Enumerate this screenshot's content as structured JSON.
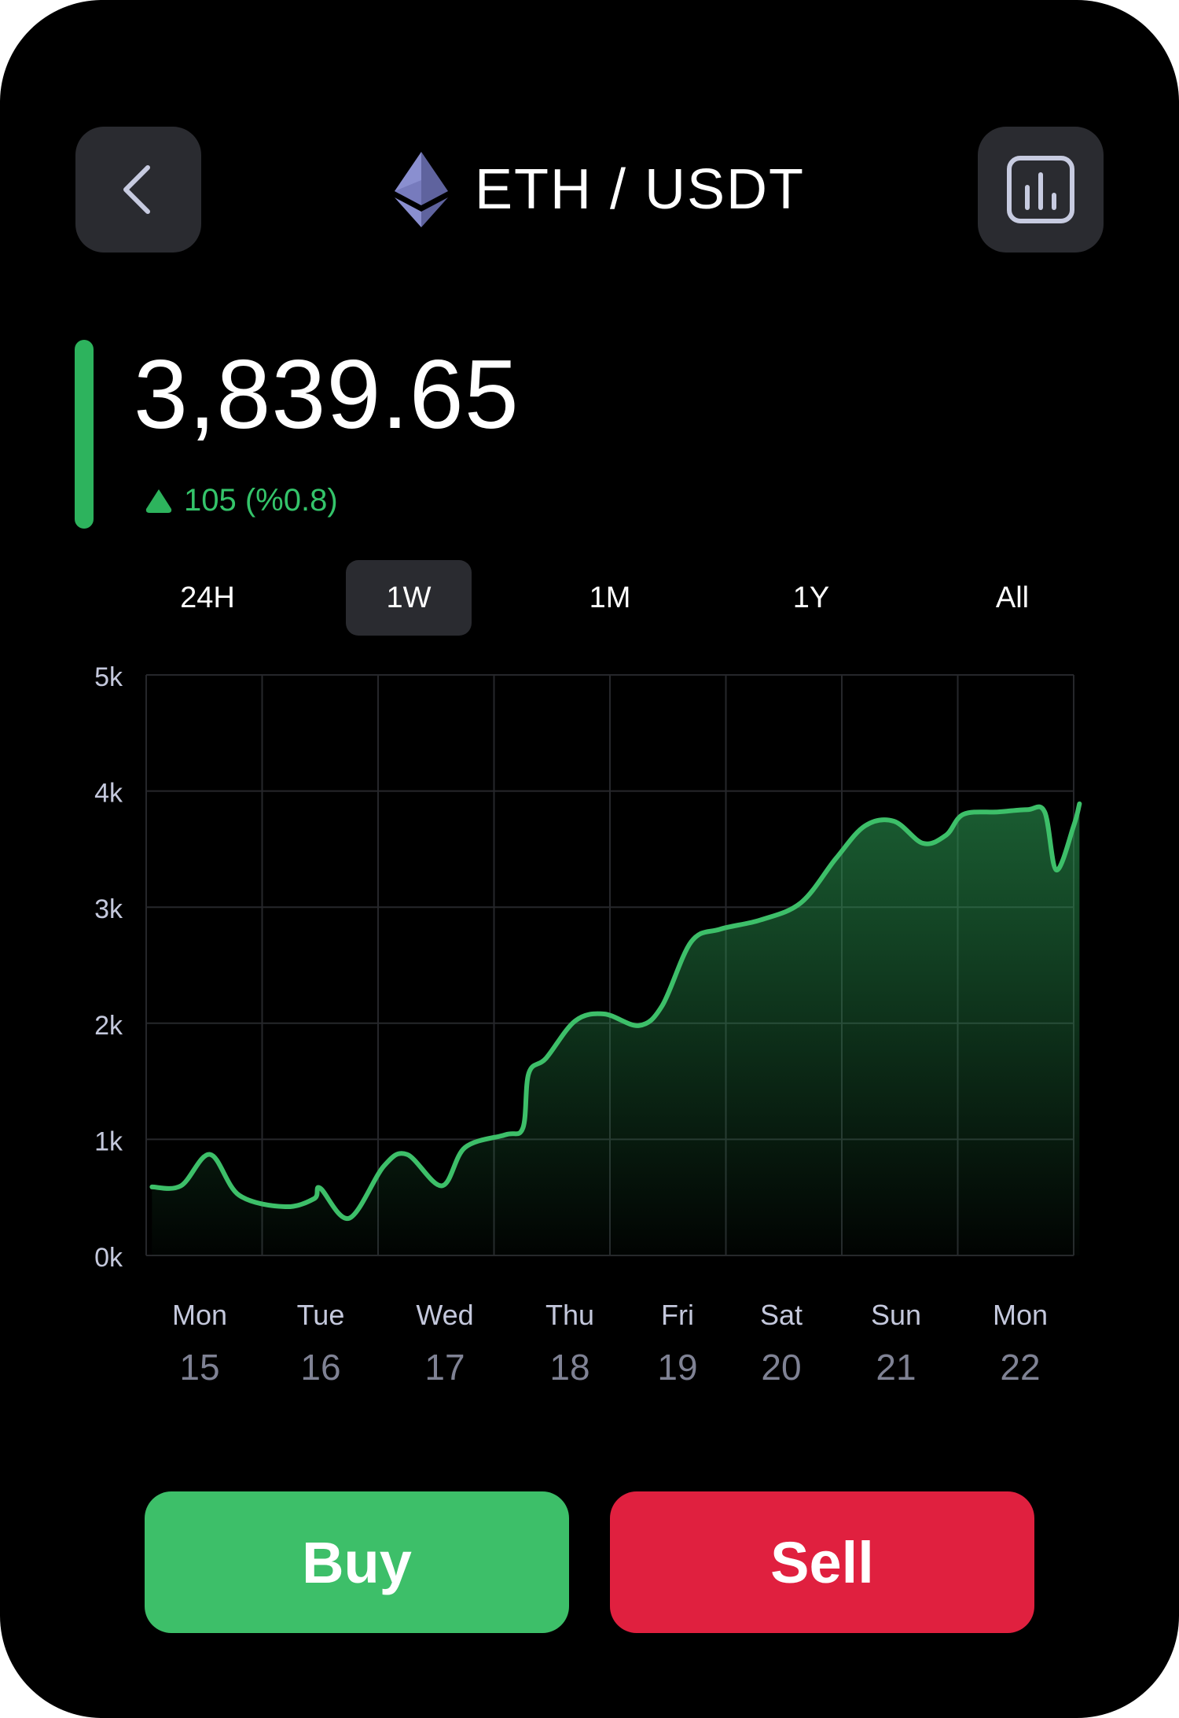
{
  "header": {
    "pair": "ETH / USDT",
    "back_icon": "chevron-left-icon",
    "chart_icon": "bar-chart-icon",
    "coin_icon": "ethereum-icon"
  },
  "price": {
    "value": "3,839.65",
    "change": "105 (%0.8)",
    "trend": "up"
  },
  "range_tabs": [
    {
      "label": "24H",
      "active": false
    },
    {
      "label": "1W",
      "active": true
    },
    {
      "label": "1M",
      "active": false
    },
    {
      "label": "1Y",
      "active": false
    },
    {
      "label": "All",
      "active": false
    }
  ],
  "chart_data": {
    "type": "area",
    "y_ticks": [
      "5k",
      "4k",
      "3k",
      "2k",
      "1k",
      "0k"
    ],
    "ylim": [
      0,
      5000
    ],
    "xlim": [
      0,
      8
    ],
    "x_labels": [
      {
        "day": "Mon",
        "date": "15"
      },
      {
        "day": "Tue",
        "date": "16"
      },
      {
        "day": "Wed",
        "date": "17"
      },
      {
        "day": "Thu",
        "date": "18"
      },
      {
        "day": "Fri",
        "date": "19"
      },
      {
        "day": "Sat",
        "date": "20"
      },
      {
        "day": "Sun",
        "date": "21"
      },
      {
        "day": "Mon",
        "date": "22"
      }
    ],
    "grid": true,
    "series": [
      {
        "points": [
          [
            0.05,
            590
          ],
          [
            0.3,
            600
          ],
          [
            0.55,
            870
          ],
          [
            0.8,
            520
          ],
          [
            1.2,
            420
          ],
          [
            1.45,
            490
          ],
          [
            1.5,
            580
          ],
          [
            1.75,
            320
          ],
          [
            2.05,
            770
          ],
          [
            2.25,
            870
          ],
          [
            2.55,
            600
          ],
          [
            2.75,
            930
          ],
          [
            3.1,
            1040
          ],
          [
            3.25,
            1100
          ],
          [
            3.3,
            1570
          ],
          [
            3.45,
            1700
          ],
          [
            3.7,
            2020
          ],
          [
            3.95,
            2080
          ],
          [
            4.25,
            1980
          ],
          [
            4.45,
            2150
          ],
          [
            4.7,
            2700
          ],
          [
            4.95,
            2810
          ],
          [
            5.3,
            2890
          ],
          [
            5.65,
            3040
          ],
          [
            5.95,
            3420
          ],
          [
            6.2,
            3700
          ],
          [
            6.45,
            3740
          ],
          [
            6.7,
            3550
          ],
          [
            6.9,
            3620
          ],
          [
            7.05,
            3800
          ],
          [
            7.35,
            3820
          ],
          [
            7.6,
            3840
          ],
          [
            7.75,
            3820
          ],
          [
            7.85,
            3320
          ],
          [
            8.0,
            3700
          ],
          [
            8.05,
            3890
          ]
        ]
      }
    ],
    "line_color": "#3dbf69"
  },
  "actions": {
    "buy_label": "Buy",
    "sell_label": "Sell"
  }
}
